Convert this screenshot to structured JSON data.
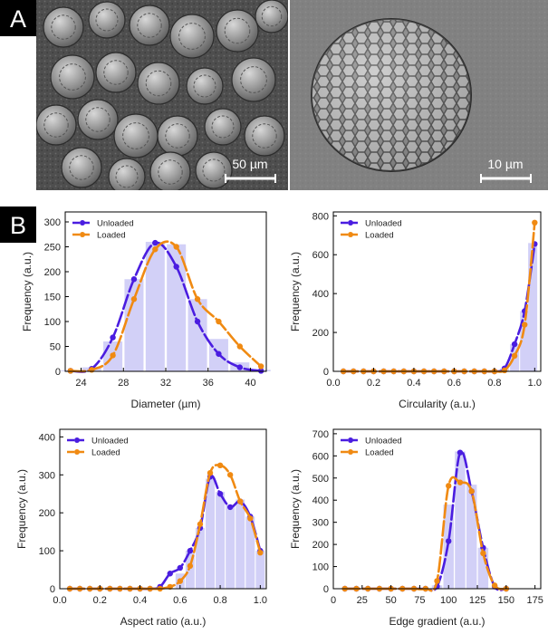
{
  "panel_a": {
    "label": "A",
    "scalebar_left": "50 µm",
    "scalebar_right": "10 µm"
  },
  "panel_b": {
    "label": "B"
  },
  "colors": {
    "unloaded": "#4a1de0",
    "loaded": "#f08a12",
    "bar": "#d2d0f7"
  },
  "chart_data": [
    {
      "type": "bar",
      "xlabel": "Diameter (µm)",
      "ylabel": "Frequency (a.u.)",
      "xlim": [
        22.5,
        41.5
      ],
      "ylim": [
        0,
        320
      ],
      "xticks": [
        24,
        28,
        32,
        36,
        40
      ],
      "yticks": [
        0,
        50,
        100,
        150,
        200,
        250,
        300
      ],
      "legend_position": "top-left",
      "bars": {
        "width": 1.8,
        "x": [
          23,
          25,
          27,
          29,
          31,
          33,
          35,
          37,
          39,
          41
        ],
        "values": [
          2,
          8,
          60,
          185,
          260,
          255,
          145,
          65,
          18,
          3
        ]
      },
      "series": [
        {
          "name": "Unloaded",
          "x": [
            23,
            25,
            27,
            29,
            31,
            33,
            35,
            37,
            39,
            41
          ],
          "y": [
            1,
            5,
            68,
            185,
            258,
            210,
            100,
            35,
            8,
            1
          ]
        },
        {
          "name": "Loaded",
          "x": [
            23,
            25,
            27,
            29,
            31,
            33,
            35,
            37,
            39,
            41
          ],
          "y": [
            1,
            3,
            32,
            145,
            245,
            250,
            145,
            100,
            50,
            10
          ]
        }
      ]
    },
    {
      "type": "bar",
      "xlabel": "Circularity (a.u.)",
      "ylabel": "Frequency (a.u.)",
      "xlim": [
        0,
        1.03
      ],
      "ylim": [
        0,
        820
      ],
      "xticks": [
        0.0,
        0.2,
        0.4,
        0.6,
        0.8,
        1.0
      ],
      "yticks": [
        0,
        200,
        400,
        600,
        800
      ],
      "legend_position": "top-left",
      "bars": {
        "width": 0.045,
        "x": [
          0.85,
          0.9,
          0.95,
          0.99
        ],
        "values": [
          15,
          140,
          310,
          660
        ]
      },
      "series": [
        {
          "name": "Unloaded",
          "x": [
            0.05,
            0.1,
            0.15,
            0.2,
            0.25,
            0.3,
            0.35,
            0.4,
            0.45,
            0.5,
            0.55,
            0.6,
            0.65,
            0.7,
            0.75,
            0.8,
            0.85,
            0.9,
            0.95,
            1.0
          ],
          "y": [
            0,
            0,
            0,
            0,
            0,
            0,
            0,
            0,
            0,
            0,
            0,
            0,
            0,
            0,
            0,
            0,
            15,
            140,
            310,
            655
          ]
        },
        {
          "name": "Loaded",
          "x": [
            0.05,
            0.1,
            0.15,
            0.2,
            0.25,
            0.3,
            0.35,
            0.4,
            0.45,
            0.5,
            0.55,
            0.6,
            0.65,
            0.7,
            0.75,
            0.8,
            0.85,
            0.9,
            0.95,
            1.0
          ],
          "y": [
            0,
            0,
            0,
            0,
            0,
            0,
            0,
            0,
            0,
            0,
            0,
            0,
            0,
            0,
            0,
            0,
            5,
            80,
            240,
            765
          ]
        }
      ]
    },
    {
      "type": "bar",
      "xlabel": "Aspect ratio (a.u.)",
      "ylabel": "Frequency (a.u.)",
      "xlim": [
        0,
        1.03
      ],
      "ylim": [
        0,
        420
      ],
      "xticks": [
        0.0,
        0.2,
        0.4,
        0.6,
        0.8,
        1.0
      ],
      "yticks": [
        0,
        100,
        200,
        300,
        400
      ],
      "legend_position": "top-left",
      "bars": {
        "width": 0.045,
        "x": [
          0.6,
          0.65,
          0.7,
          0.75,
          0.8,
          0.85,
          0.9,
          0.95,
          1.0
        ],
        "values": [
          40,
          100,
          160,
          290,
          255,
          220,
          235,
          190,
          100
        ]
      },
      "series": [
        {
          "name": "Unloaded",
          "x": [
            0.05,
            0.1,
            0.15,
            0.2,
            0.25,
            0.3,
            0.35,
            0.4,
            0.45,
            0.5,
            0.55,
            0.6,
            0.65,
            0.7,
            0.75,
            0.8,
            0.85,
            0.9,
            0.95,
            1.0
          ],
          "y": [
            0,
            0,
            0,
            0,
            0,
            0,
            0,
            0,
            0,
            5,
            40,
            55,
            100,
            160,
            295,
            250,
            215,
            230,
            190,
            100
          ]
        },
        {
          "name": "Loaded",
          "x": [
            0.05,
            0.1,
            0.15,
            0.2,
            0.25,
            0.3,
            0.35,
            0.4,
            0.45,
            0.5,
            0.55,
            0.6,
            0.65,
            0.7,
            0.75,
            0.8,
            0.85,
            0.9,
            0.95,
            1.0
          ],
          "y": [
            0,
            0,
            0,
            0,
            0,
            0,
            0,
            0,
            0,
            0,
            5,
            20,
            60,
            170,
            305,
            325,
            300,
            230,
            185,
            95
          ]
        }
      ]
    },
    {
      "type": "bar",
      "xlabel": "Edge gradient (a.u.)",
      "ylabel": "Frequency (a.u.)",
      "xlim": [
        0,
        180
      ],
      "ylim": [
        0,
        720
      ],
      "xticks": [
        0,
        25,
        50,
        75,
        100,
        125,
        150,
        175
      ],
      "yticks": [
        0,
        100,
        200,
        300,
        400,
        500,
        600,
        700
      ],
      "legend_position": "top-left",
      "bars": {
        "width": 9,
        "x": [
          90,
          100,
          110,
          120,
          130
        ],
        "values": [
          15,
          380,
          620,
          470,
          185
        ]
      },
      "series": [
        {
          "name": "Unloaded",
          "x": [
            10,
            20,
            30,
            40,
            50,
            60,
            70,
            80,
            90,
            100,
            110,
            120,
            130,
            140,
            150
          ],
          "y": [
            0,
            0,
            0,
            0,
            0,
            0,
            0,
            0,
            10,
            215,
            615,
            440,
            185,
            10,
            0
          ]
        },
        {
          "name": "Loaded",
          "x": [
            10,
            20,
            30,
            40,
            50,
            60,
            70,
            80,
            90,
            100,
            110,
            120,
            130,
            140,
            150
          ],
          "y": [
            0,
            0,
            0,
            0,
            0,
            0,
            0,
            0,
            35,
            465,
            480,
            440,
            160,
            15,
            0
          ]
        }
      ]
    }
  ]
}
